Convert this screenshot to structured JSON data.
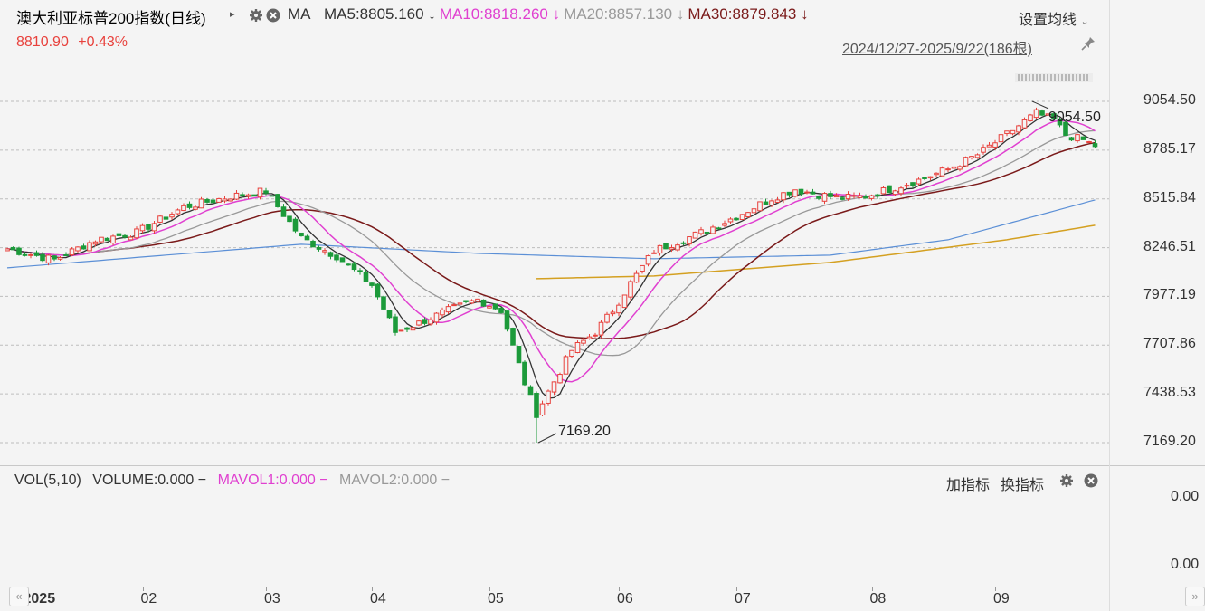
{
  "header": {
    "title": "澳大利亚标普200指数(日线)",
    "indicator": "MA",
    "ma_items": [
      {
        "label": "MA5:8805.160",
        "arrow": "↓",
        "color": "#333333"
      },
      {
        "label": "MA10:8818.260",
        "arrow": "↓",
        "color": "#e040d0"
      },
      {
        "label": "MA20:8857.130",
        "arrow": "↓",
        "color": "#999999"
      },
      {
        "label": "MA30:8879.843",
        "arrow": "↓",
        "color": "#7a1a1a"
      }
    ],
    "settings_label": "设置均线",
    "price": "8810.90",
    "change": "+0.43%",
    "date_range": "2024/12/27-2025/9/22(186根)"
  },
  "volume_panel": {
    "vol_label": "VOL(5,10)",
    "volume_label": "VOLUME:0.000",
    "mavol1_label": "MAVOL1:0.000",
    "mavol2_label": "MAVOL2:0.000",
    "dash": "−",
    "add_indicator": "加指标",
    "switch_indicator": "换指标",
    "y_labels": [
      "0.00",
      "0.00"
    ]
  },
  "colors": {
    "up": "#e8413c",
    "down": "#1c9a3a",
    "ma5": "#333333",
    "ma10": "#e040d0",
    "ma20": "#999999",
    "ma30": "#7a1a1a",
    "ma_long_blue": "#5b8fd6",
    "ma_long_gold": "#d4a021"
  },
  "chart_data": {
    "type": "candlestick",
    "y_ticks": [
      9054.5,
      8785.17,
      8515.84,
      8246.51,
      7977.19,
      7707.86,
      7438.53,
      7169.2
    ],
    "y_tick_labels": [
      "9054.50",
      "8785.17",
      "8515.84",
      "8246.51",
      "7977.19",
      "7707.86",
      "7438.53",
      "7169.20"
    ],
    "ylim": [
      7169.2,
      9054.5
    ],
    "x_tick_labels": [
      "2025",
      "02",
      "03",
      "04",
      "05",
      "06",
      "07",
      "08",
      "09"
    ],
    "annotations": [
      {
        "text": "9054.50",
        "label": "high"
      },
      {
        "text": "7169.20",
        "label": "low"
      }
    ],
    "close_anchors": [
      [
        0,
        8240
      ],
      [
        8,
        8180
      ],
      [
        15,
        8290
      ],
      [
        22,
        8330
      ],
      [
        30,
        8470
      ],
      [
        38,
        8530
      ],
      [
        44,
        8560
      ],
      [
        50,
        8300
      ],
      [
        56,
        8200
      ],
      [
        62,
        8040
      ],
      [
        66,
        7780
      ],
      [
        70,
        7830
      ],
      [
        75,
        7900
      ],
      [
        80,
        7960
      ],
      [
        84,
        7900
      ],
      [
        88,
        7500
      ],
      [
        90,
        7330
      ],
      [
        92,
        7450
      ],
      [
        96,
        7680
      ],
      [
        100,
        7780
      ],
      [
        103,
        7900
      ],
      [
        106,
        8050
      ],
      [
        110,
        8230
      ],
      [
        114,
        8280
      ],
      [
        118,
        8330
      ],
      [
        124,
        8420
      ],
      [
        130,
        8520
      ],
      [
        134,
        8570
      ],
      [
        138,
        8540
      ],
      [
        142,
        8520
      ],
      [
        146,
        8530
      ],
      [
        150,
        8570
      ],
      [
        155,
        8620
      ],
      [
        160,
        8680
      ],
      [
        165,
        8760
      ],
      [
        169,
        8850
      ],
      [
        172,
        8920
      ],
      [
        175,
        8990
      ],
      [
        178,
        8950
      ],
      [
        180,
        8870
      ],
      [
        183,
        8840
      ],
      [
        185,
        8810
      ]
    ],
    "ma_long_blue_anchors": [
      [
        0,
        8135
      ],
      [
        50,
        8265
      ],
      [
        80,
        8215
      ],
      [
        110,
        8185
      ],
      [
        140,
        8205
      ],
      [
        160,
        8290
      ],
      [
        185,
        8510
      ]
    ],
    "ma_long_gold_anchors": [
      [
        90,
        8075
      ],
      [
        110,
        8090
      ],
      [
        140,
        8165
      ],
      [
        170,
        8290
      ],
      [
        185,
        8370
      ]
    ]
  }
}
